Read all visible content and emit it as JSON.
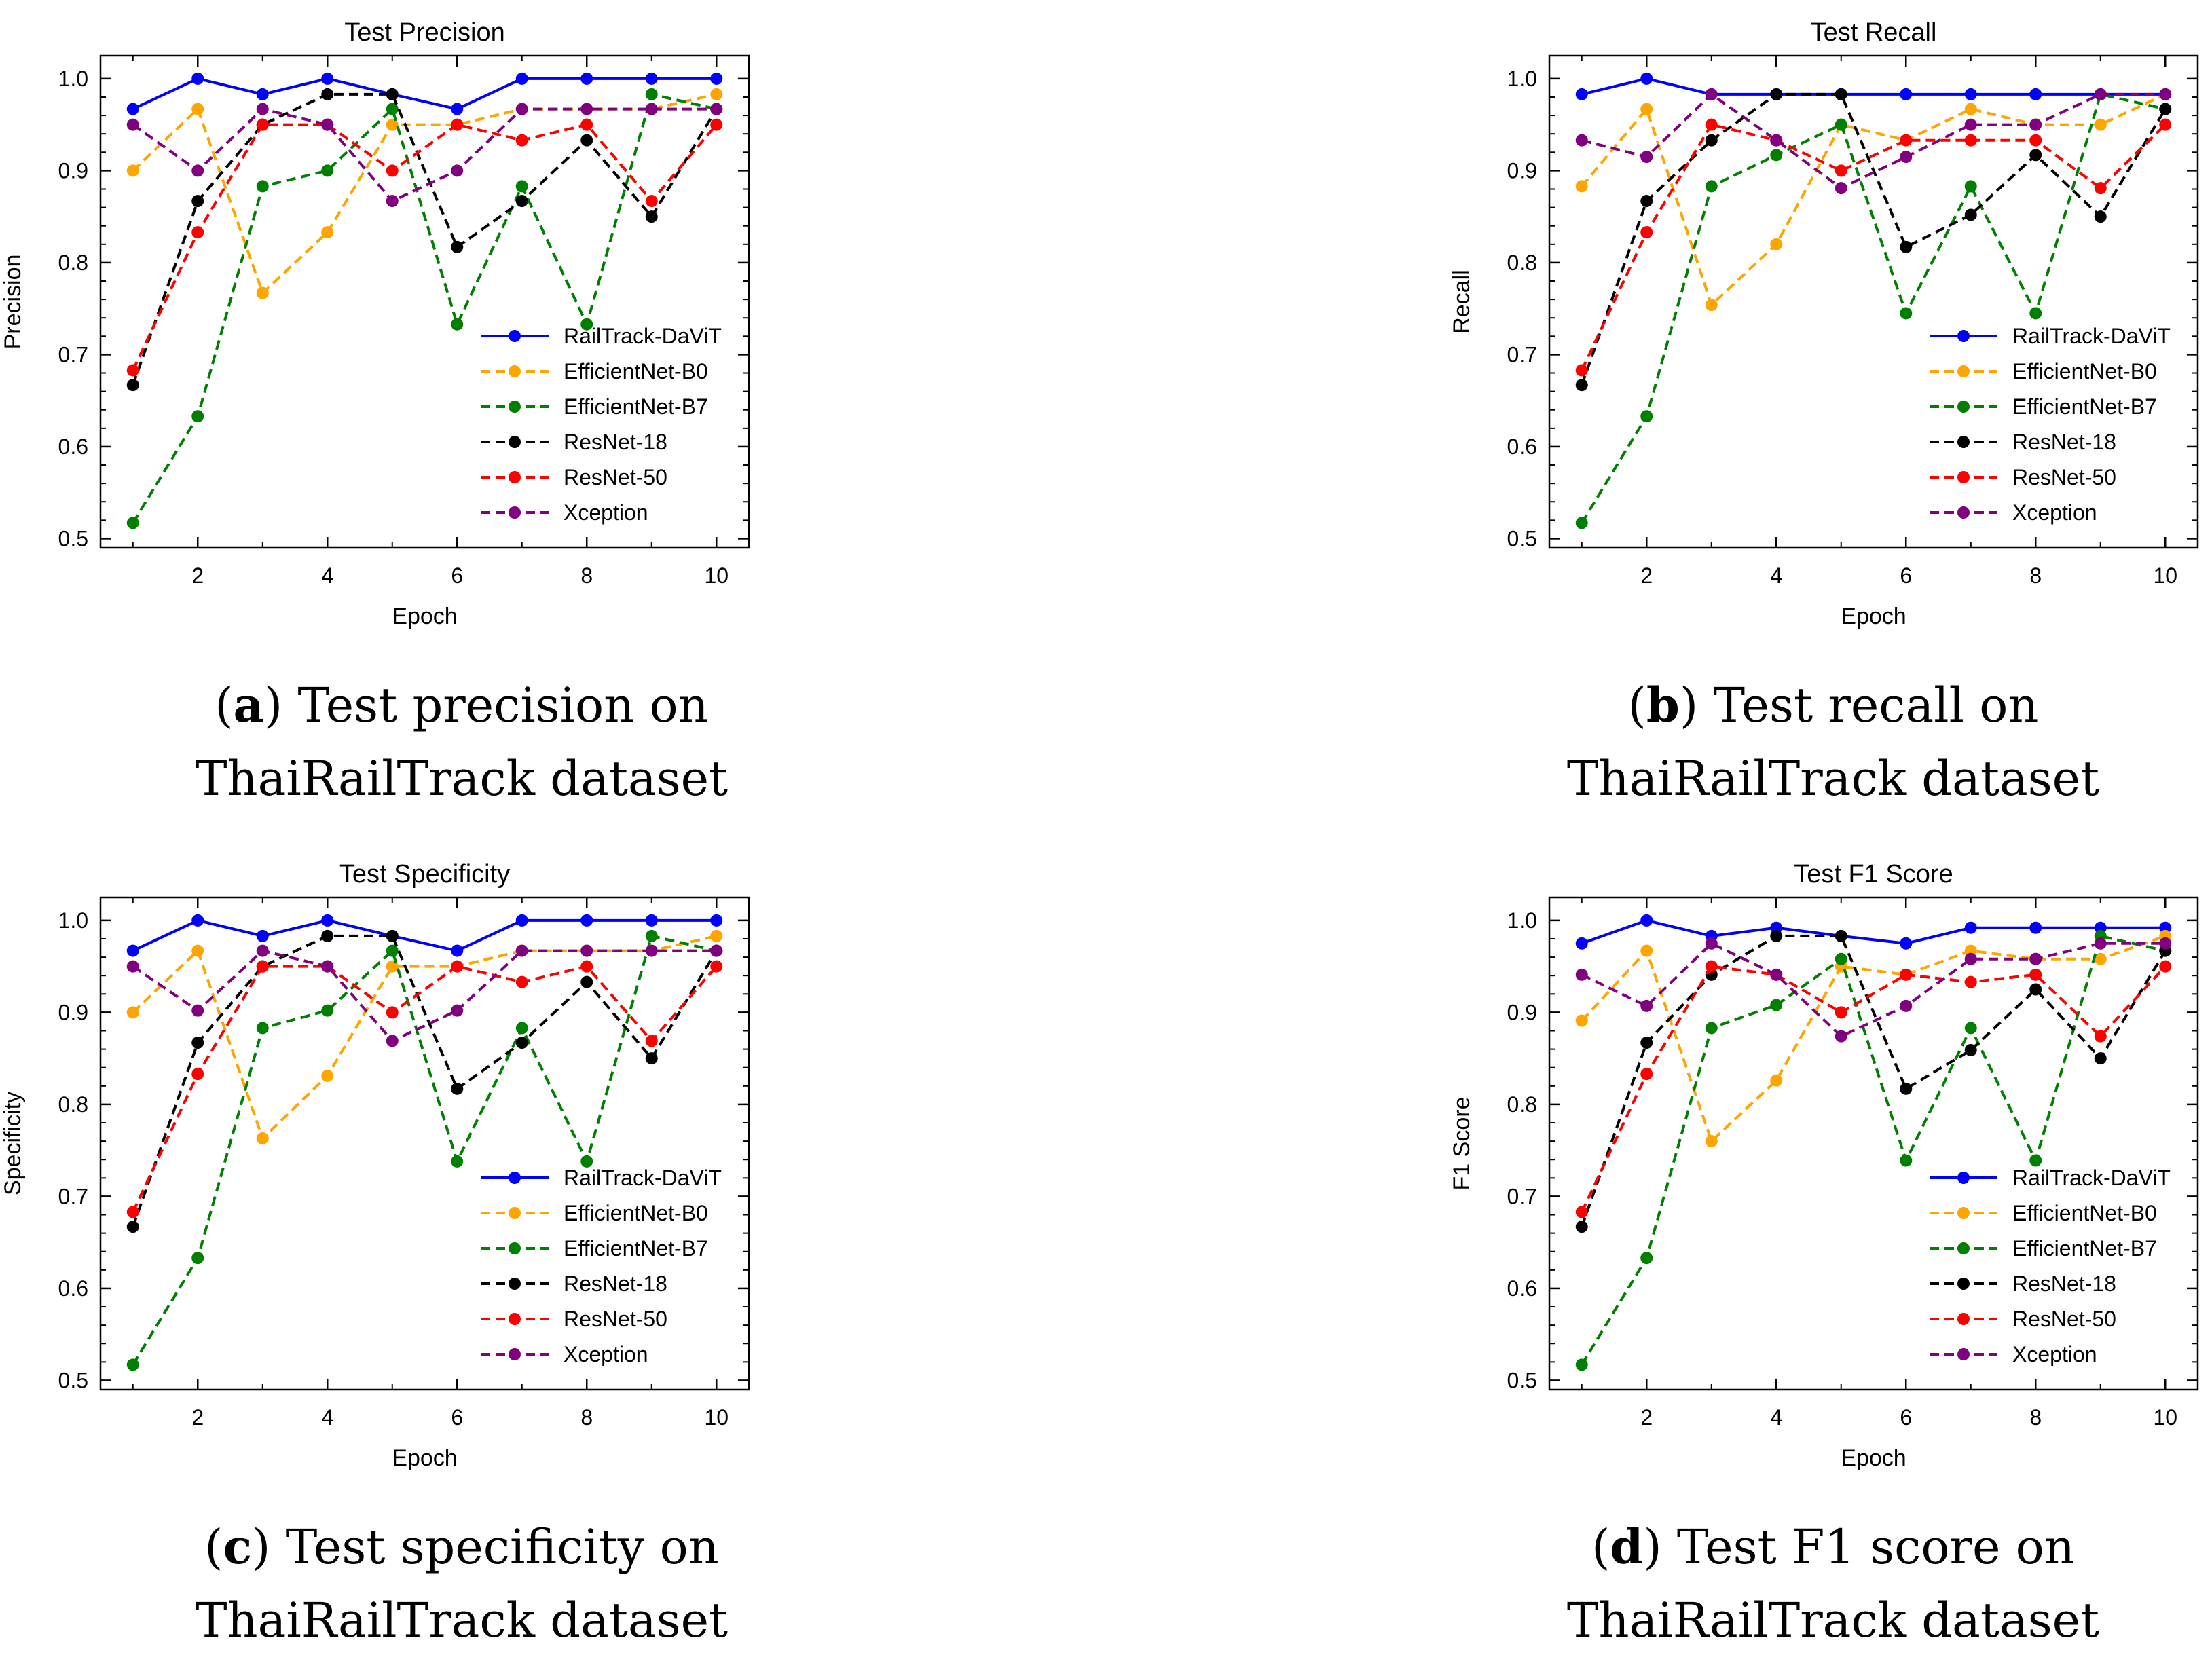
{
  "x_axis_label": "Epoch",
  "x_ticks": [
    2,
    4,
    6,
    8,
    10
  ],
  "y_ticks": [
    0.5,
    0.6,
    0.7,
    0.8,
    0.9,
    1.0
  ],
  "series_style": [
    {
      "name": "RailTrack-DaViT",
      "color": "#0000ff",
      "dashed": false
    },
    {
      "name": "EfficientNet-B0",
      "color": "#ffa500",
      "dashed": true
    },
    {
      "name": "EfficientNet-B7",
      "color": "#008000",
      "dashed": true
    },
    {
      "name": "ResNet-18",
      "color": "#000000",
      "dashed": true
    },
    {
      "name": "ResNet-50",
      "color": "#ff0000",
      "dashed": true
    },
    {
      "name": "Xception",
      "color": "#800080",
      "dashed": true
    }
  ],
  "captions": [
    {
      "letter": "a",
      "text_line1": ") Test precision on",
      "text_line2": "ThaiRailTrack dataset"
    },
    {
      "letter": "b",
      "text_line1": ") Test recall on",
      "text_line2": "ThaiRailTrack dataset"
    },
    {
      "letter": "c",
      "text_line1": ") Test specificity on",
      "text_line2": "ThaiRailTrack dataset"
    },
    {
      "letter": "d",
      "text_line1": ") Test F1 score on",
      "text_line2": "ThaiRailTrack dataset"
    }
  ],
  "chart_data": [
    {
      "type": "line",
      "title": "Test Precision",
      "xlabel": "Epoch",
      "ylabel": "Precision",
      "x": [
        1,
        2,
        3,
        4,
        5,
        6,
        7,
        8,
        9,
        10
      ],
      "xlim": [
        0.5,
        10.5
      ],
      "ylim": [
        0.49,
        1.025
      ],
      "legend": "center-right",
      "series": [
        {
          "name": "RailTrack-DaViT",
          "values": [
            0.967,
            1.0,
            0.983,
            1.0,
            0.983,
            0.967,
            1.0,
            1.0,
            1.0,
            1.0
          ]
        },
        {
          "name": "EfficientNet-B0",
          "values": [
            0.9,
            0.967,
            0.767,
            0.833,
            0.95,
            0.95,
            0.967,
            0.967,
            0.967,
            0.983
          ]
        },
        {
          "name": "EfficientNet-B7",
          "values": [
            0.517,
            0.633,
            0.883,
            0.9,
            0.967,
            0.733,
            0.883,
            0.733,
            0.983,
            0.967
          ]
        },
        {
          "name": "ResNet-18",
          "values": [
            0.667,
            0.867,
            0.95,
            0.983,
            0.983,
            0.817,
            0.867,
            0.933,
            0.85,
            0.967
          ]
        },
        {
          "name": "ResNet-50",
          "values": [
            0.683,
            0.833,
            0.95,
            0.95,
            0.9,
            0.95,
            0.933,
            0.95,
            0.867,
            0.95
          ]
        },
        {
          "name": "Xception",
          "values": [
            0.95,
            0.9,
            0.967,
            0.95,
            0.867,
            0.9,
            0.967,
            0.967,
            0.967,
            0.967
          ]
        }
      ]
    },
    {
      "type": "line",
      "title": "Test Recall",
      "xlabel": "Epoch",
      "ylabel": "Recall",
      "x": [
        1,
        2,
        3,
        4,
        5,
        6,
        7,
        8,
        9,
        10
      ],
      "xlim": [
        0.5,
        10.5
      ],
      "ylim": [
        0.49,
        1.025
      ],
      "legend": "center-right",
      "series": [
        {
          "name": "RailTrack-DaViT",
          "values": [
            0.983,
            1.0,
            0.983,
            0.983,
            0.983,
            0.983,
            0.983,
            0.983,
            0.983,
            0.983
          ]
        },
        {
          "name": "EfficientNet-B0",
          "values": [
            0.883,
            0.967,
            0.754,
            0.82,
            0.95,
            0.933,
            0.967,
            0.95,
            0.95,
            0.983
          ]
        },
        {
          "name": "EfficientNet-B7",
          "values": [
            0.517,
            0.633,
            0.883,
            0.917,
            0.95,
            0.745,
            0.883,
            0.745,
            0.983,
            0.967
          ]
        },
        {
          "name": "ResNet-18",
          "values": [
            0.667,
            0.867,
            0.933,
            0.983,
            0.983,
            0.817,
            0.852,
            0.917,
            0.85,
            0.967
          ]
        },
        {
          "name": "ResNet-50",
          "values": [
            0.683,
            0.833,
            0.95,
            0.933,
            0.9,
            0.933,
            0.933,
            0.933,
            0.881,
            0.95
          ]
        },
        {
          "name": "Xception",
          "values": [
            0.933,
            0.915,
            0.983,
            0.933,
            0.881,
            0.915,
            0.95,
            0.95,
            0.983,
            0.983
          ]
        }
      ]
    },
    {
      "type": "line",
      "title": "Test Specificity",
      "xlabel": "Epoch",
      "ylabel": "Specificity",
      "x": [
        1,
        2,
        3,
        4,
        5,
        6,
        7,
        8,
        9,
        10
      ],
      "xlim": [
        0.5,
        10.5
      ],
      "ylim": [
        0.49,
        1.025
      ],
      "legend": "center-right",
      "series": [
        {
          "name": "RailTrack-DaViT",
          "values": [
            0.967,
            1.0,
            0.983,
            1.0,
            0.983,
            0.967,
            1.0,
            1.0,
            1.0,
            1.0
          ]
        },
        {
          "name": "EfficientNet-B0",
          "values": [
            0.9,
            0.967,
            0.763,
            0.831,
            0.95,
            0.95,
            0.967,
            0.967,
            0.967,
            0.983
          ]
        },
        {
          "name": "EfficientNet-B7",
          "values": [
            0.517,
            0.633,
            0.883,
            0.902,
            0.967,
            0.738,
            0.883,
            0.738,
            0.983,
            0.967
          ]
        },
        {
          "name": "ResNet-18",
          "values": [
            0.667,
            0.867,
            0.95,
            0.983,
            0.983,
            0.817,
            0.867,
            0.933,
            0.85,
            0.967
          ]
        },
        {
          "name": "ResNet-50",
          "values": [
            0.683,
            0.833,
            0.95,
            0.95,
            0.9,
            0.95,
            0.933,
            0.95,
            0.869,
            0.95
          ]
        },
        {
          "name": "Xception",
          "values": [
            0.95,
            0.902,
            0.967,
            0.95,
            0.869,
            0.902,
            0.967,
            0.967,
            0.967,
            0.967
          ]
        }
      ]
    },
    {
      "type": "line",
      "title": "Test F1 Score",
      "xlabel": "Epoch",
      "ylabel": "F1 Score",
      "x": [
        1,
        2,
        3,
        4,
        5,
        6,
        7,
        8,
        9,
        10
      ],
      "xlim": [
        0.5,
        10.5
      ],
      "ylim": [
        0.49,
        1.025
      ],
      "legend": "center-right",
      "series": [
        {
          "name": "RailTrack-DaViT",
          "values": [
            0.975,
            1.0,
            0.983,
            0.992,
            0.983,
            0.975,
            0.992,
            0.992,
            0.992,
            0.992
          ]
        },
        {
          "name": "EfficientNet-B0",
          "values": [
            0.891,
            0.967,
            0.76,
            0.826,
            0.95,
            0.941,
            0.967,
            0.958,
            0.958,
            0.983
          ]
        },
        {
          "name": "EfficientNet-B7",
          "values": [
            0.517,
            0.633,
            0.883,
            0.908,
            0.958,
            0.739,
            0.883,
            0.739,
            0.983,
            0.967
          ]
        },
        {
          "name": "ResNet-18",
          "values": [
            0.667,
            0.867,
            0.941,
            0.983,
            0.983,
            0.817,
            0.859,
            0.925,
            0.85,
            0.967
          ]
        },
        {
          "name": "ResNet-50",
          "values": [
            0.683,
            0.833,
            0.95,
            0.941,
            0.9,
            0.941,
            0.933,
            0.941,
            0.874,
            0.95
          ]
        },
        {
          "name": "Xception",
          "values": [
            0.941,
            0.907,
            0.975,
            0.941,
            0.874,
            0.907,
            0.958,
            0.958,
            0.975,
            0.975
          ]
        }
      ]
    }
  ]
}
